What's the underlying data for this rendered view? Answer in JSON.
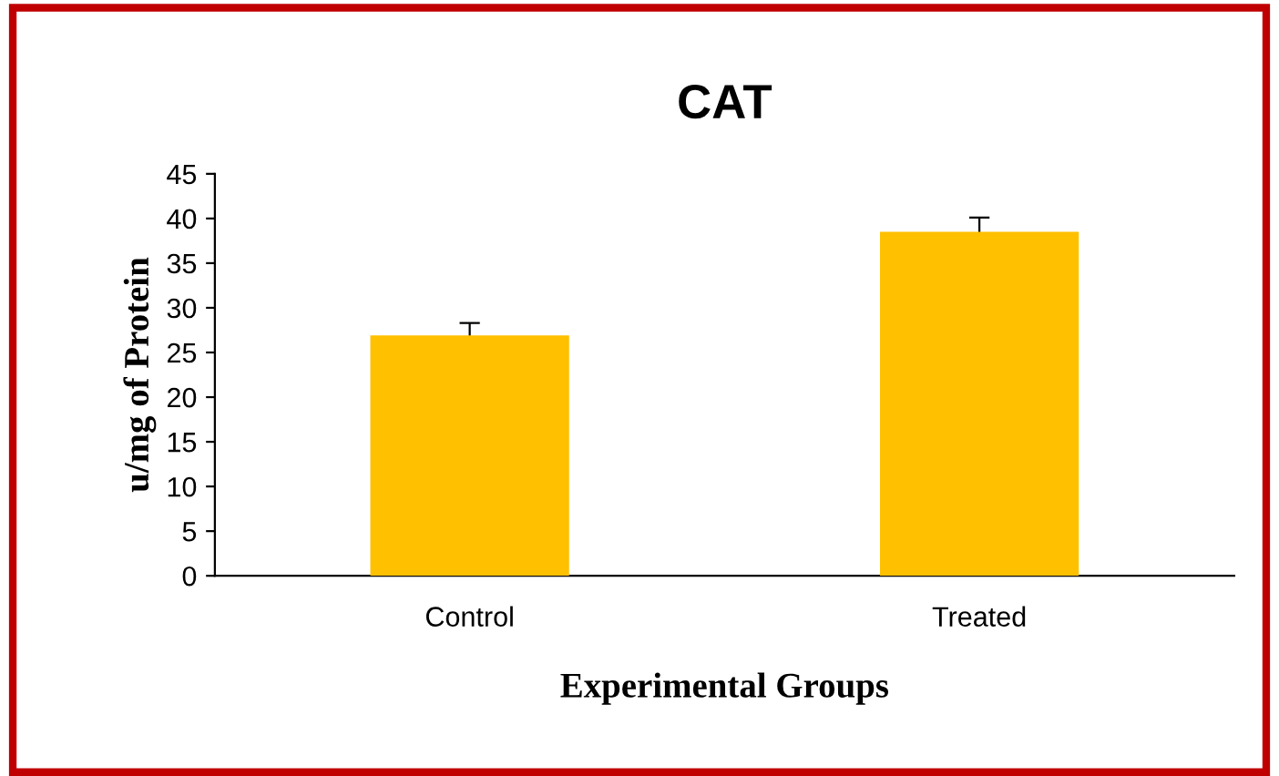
{
  "chart_data": {
    "type": "bar",
    "title": "CAT",
    "xlabel": "Experimental Groups",
    "ylabel": "u/mg of Protein",
    "categories": [
      "Control",
      "Treated"
    ],
    "values": [
      26.9,
      38.5
    ],
    "errors": [
      1.4,
      1.6
    ],
    "color": "#ffc000",
    "ylim": [
      0,
      45
    ],
    "yticks": [
      0,
      5,
      10,
      15,
      20,
      25,
      30,
      35,
      40,
      45
    ],
    "grid": false,
    "legend": false
  }
}
